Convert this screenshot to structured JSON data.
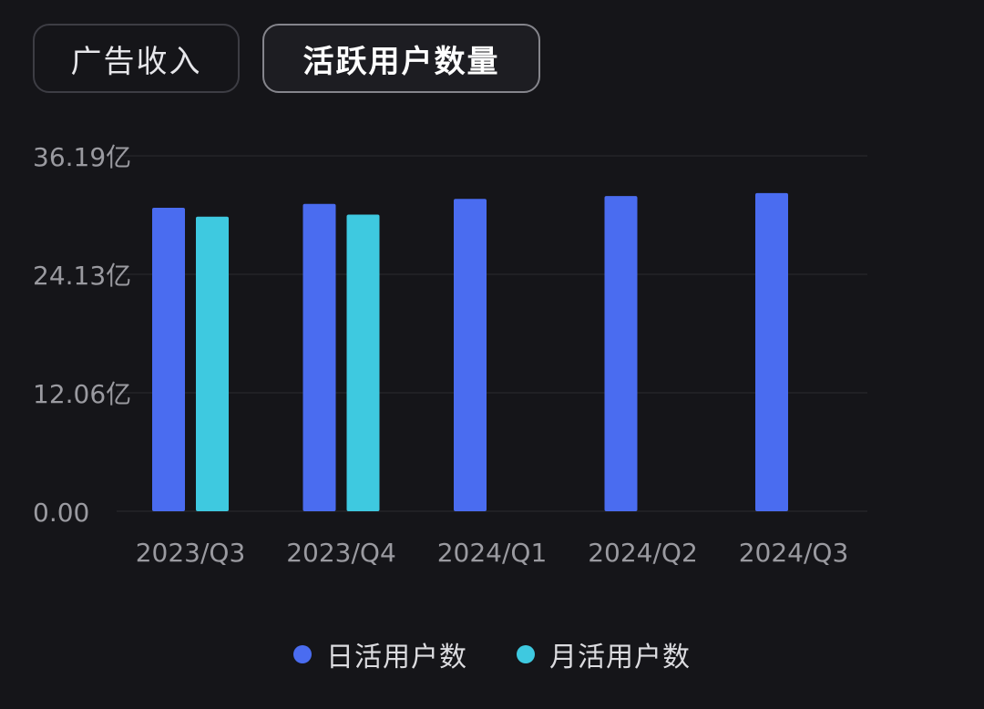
{
  "tabs": {
    "ad_revenue": "广告收入",
    "active_users": "活跃用户数量"
  },
  "colors": {
    "background": "#151519",
    "dau": "#4a6cf0",
    "mau": "#3ec9e0",
    "grid": "#2a2a30",
    "tick_text": "#9a9aa0"
  },
  "chart_data": {
    "type": "bar",
    "categories": [
      "2023/Q3",
      "2023/Q4",
      "2024/Q1",
      "2024/Q2",
      "2024/Q3"
    ],
    "series": [
      {
        "name": "日活用户数",
        "color": "#4a6cf0",
        "values": [
          30.9,
          31.3,
          31.8,
          32.1,
          32.4
        ]
      },
      {
        "name": "月活用户数",
        "color": "#3ec9e0",
        "values": [
          30.0,
          30.2,
          null,
          null,
          null
        ]
      }
    ],
    "y_ticks": [
      "0.00",
      "12.06亿",
      "24.13亿",
      "36.19亿"
    ],
    "y_tick_values": [
      0,
      12.06,
      24.13,
      36.19
    ],
    "ylim": [
      0,
      36.19
    ],
    "grid": true,
    "legend": "bottom-center"
  }
}
